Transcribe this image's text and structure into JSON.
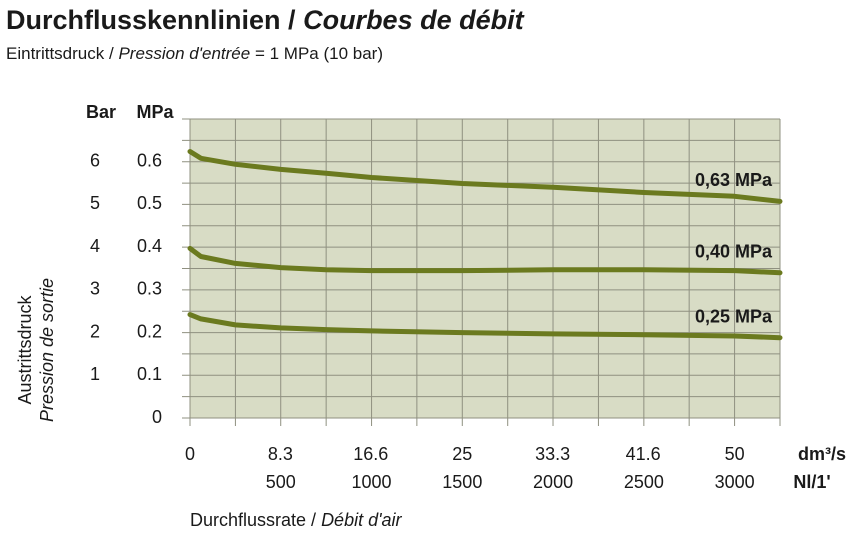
{
  "chart_data": {
    "type": "line",
    "title": [
      "Durchflusskennlinien /",
      "Courbes de débit"
    ],
    "subtitle": [
      "Eintrittsdruck /",
      "Pression d'entrée",
      "= 1 MPa (10 bar)"
    ],
    "ylabel": [
      "Austrittsdruck",
      "Pression de sortie"
    ],
    "xlabel": [
      "Durchflussrate /",
      "Débit d'air"
    ],
    "y_unit": "MPa",
    "y2_unit": "Bar",
    "x_unit": "dm³/s",
    "x2_unit": "Nl/1'",
    "x": [
      0,
      1,
      4.17,
      8.33,
      12.5,
      16.67,
      25,
      33.33,
      41.67,
      50,
      54.17
    ],
    "series": [
      {
        "name": "0,63 MPa",
        "color": "#6b7a1f",
        "values": [
          0.624,
          0.608,
          0.594,
          0.582,
          0.573,
          0.563,
          0.549,
          0.54,
          0.528,
          0.519,
          0.507
        ]
      },
      {
        "name": "0,40 MPa",
        "color": "#6b7a1f",
        "values": [
          0.397,
          0.378,
          0.362,
          0.352,
          0.347,
          0.345,
          0.345,
          0.347,
          0.347,
          0.345,
          0.34
        ]
      },
      {
        "name": "0,25 MPa",
        "color": "#6b7a1f",
        "values": [
          0.242,
          0.232,
          0.218,
          0.211,
          0.207,
          0.204,
          0.2,
          0.197,
          0.195,
          0.192,
          0.188
        ]
      }
    ],
    "xlim": [
      0,
      54.17
    ],
    "xticks": [
      0,
      8.3,
      16.6,
      25,
      33.3,
      41.6,
      50
    ],
    "x2lim": [
      0,
      3250
    ],
    "x2ticks": [
      500,
      1000,
      1500,
      2000,
      2500,
      3000
    ],
    "ylim": [
      0,
      0.7
    ],
    "yticks": [
      0,
      0.1,
      0.2,
      0.3,
      0.4,
      0.5,
      0.6
    ],
    "y2lim": [
      0,
      7
    ],
    "y2ticks": [
      1,
      2,
      3,
      4,
      5,
      6
    ],
    "xgrid": [
      0,
      4.17,
      8.33,
      12.5,
      16.67,
      20.83,
      25,
      29.17,
      33.33,
      37.5,
      41.67,
      45.83,
      50,
      54.17
    ],
    "ygrid": [
      0,
      0.05,
      0.1,
      0.15,
      0.2,
      0.25,
      0.3,
      0.35,
      0.4,
      0.45,
      0.5,
      0.55,
      0.6,
      0.65,
      0.7
    ],
    "grid": true,
    "background": "#d8dcc5"
  }
}
